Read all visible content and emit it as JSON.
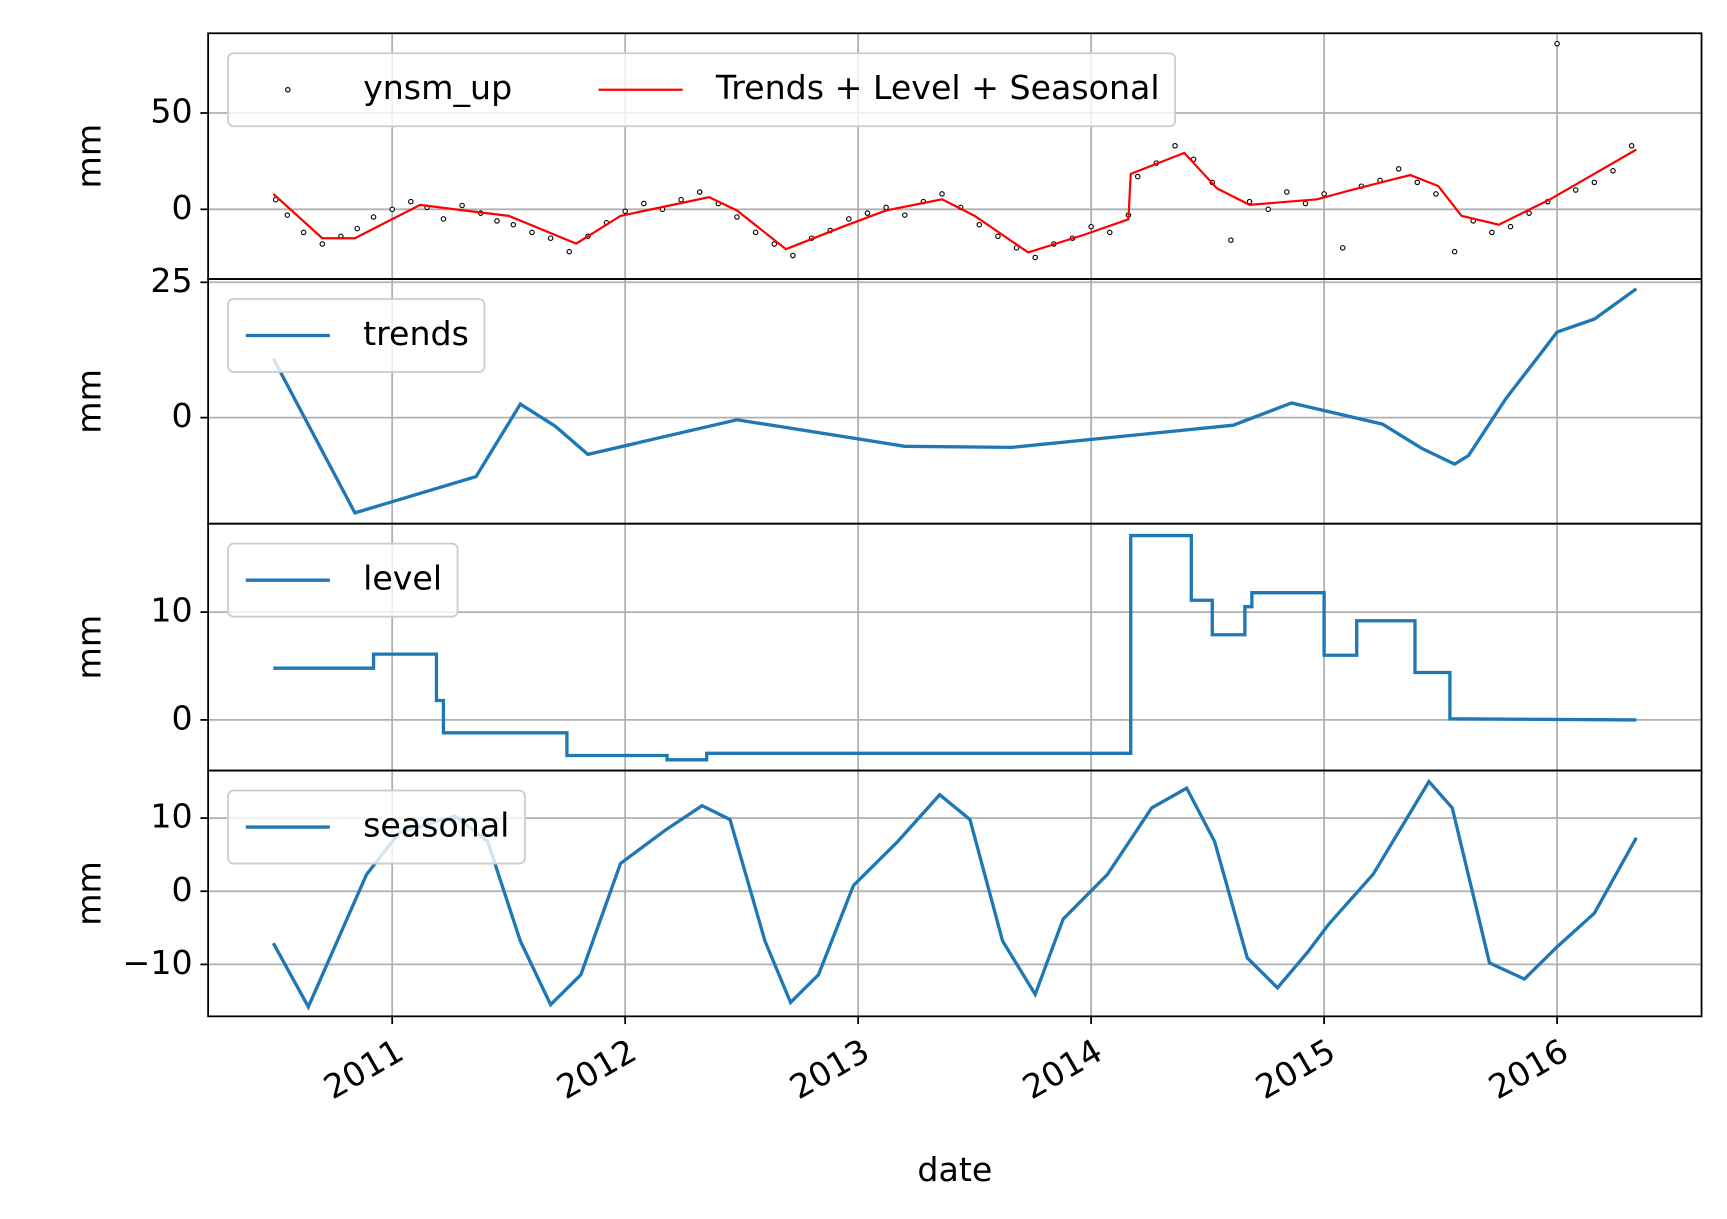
{
  "chart_data": [
    {
      "type": "line",
      "ylabel": "mm",
      "legend": "upper left",
      "grid": true,
      "xlim": [
        2010.21,
        2016.62
      ],
      "xticks": [
        2011,
        2012,
        2013,
        2014,
        2015,
        2016
      ],
      "ylim": [
        -36.2,
        91.4
      ],
      "yticks": [
        0,
        50
      ],
      "series": [
        {
          "name": "ynsm_up",
          "style": "points",
          "color": "#000000",
          "x": [
            2010.5,
            2010.55,
            2010.62,
            2010.7,
            2010.78,
            2010.85,
            2010.92,
            2011.0,
            2011.08,
            2011.15,
            2011.22,
            2011.3,
            2011.38,
            2011.45,
            2011.52,
            2011.6,
            2011.68,
            2011.76,
            2011.84,
            2011.92,
            2012.0,
            2012.08,
            2012.16,
            2012.24,
            2012.32,
            2012.4,
            2012.48,
            2012.56,
            2012.64,
            2012.72,
            2012.8,
            2012.88,
            2012.96,
            2013.04,
            2013.12,
            2013.2,
            2013.28,
            2013.36,
            2013.44,
            2013.52,
            2013.6,
            2013.68,
            2013.76,
            2013.84,
            2013.92,
            2014.0,
            2014.08,
            2014.16,
            2014.2,
            2014.28,
            2014.36,
            2014.44,
            2014.52,
            2014.6,
            2014.68,
            2014.76,
            2014.84,
            2014.92,
            2015.0,
            2015.08,
            2015.16,
            2015.24,
            2015.32,
            2015.4,
            2015.48,
            2015.56,
            2015.64,
            2015.72,
            2015.8,
            2015.88,
            2015.96,
            2016.0,
            2016.08,
            2016.16,
            2016.24,
            2016.32
          ],
          "values": [
            5,
            -3,
            -12,
            -18,
            -14,
            -10,
            -4,
            0,
            4,
            1,
            -5,
            2,
            -2,
            -6,
            -8,
            -12,
            -15,
            -22,
            -14,
            -7,
            -1,
            3,
            0,
            5,
            9,
            3,
            -4,
            -12,
            -18,
            -24,
            -15,
            -11,
            -5,
            -2,
            1,
            -3,
            4,
            8,
            1,
            -8,
            -14,
            -20,
            -25,
            -18,
            -15,
            -9,
            -12,
            -3,
            17,
            24,
            33,
            26,
            14,
            -16,
            4,
            0,
            9,
            3,
            8,
            -20,
            12,
            15,
            21,
            14,
            8,
            -22,
            -6,
            -12,
            -9,
            -2,
            4,
            86,
            10,
            14,
            20,
            33
          ]
        },
        {
          "name": "Trends + Level + Seasonal",
          "style": "line",
          "color": "#ff0000",
          "x": [
            2010.49,
            2010.7,
            2010.84,
            2011.12,
            2011.31,
            2011.5,
            2011.79,
            2011.98,
            2012.36,
            2012.48,
            2012.69,
            2012.93,
            2013.12,
            2013.36,
            2013.5,
            2013.73,
            2013.97,
            2014.16,
            2014.17,
            2014.4,
            2014.54,
            2014.68,
            2014.97,
            2015.11,
            2015.37,
            2015.49,
            2015.59,
            2015.75,
            2015.97,
            2016.34
          ],
          "values": [
            8,
            -15,
            -15,
            2.3,
            -0.6,
            -3.4,
            -17.8,
            -3.4,
            6.3,
            -0.6,
            -20.7,
            -9.2,
            -0.6,
            5.2,
            -3.4,
            -22.4,
            -13.2,
            -5.2,
            18.4,
            29.3,
            10.9,
            2.3,
            5.2,
            9.8,
            17.8,
            12.1,
            -3.4,
            -8.0,
            5.2,
            31
          ]
        }
      ]
    },
    {
      "type": "line",
      "ylabel": "mm",
      "legend": "upper left",
      "grid": true,
      "xlim": [
        2010.21,
        2016.62
      ],
      "xticks": [
        2011,
        2012,
        2013,
        2014,
        2015,
        2016
      ],
      "ylim": [
        -19.6,
        25.6
      ],
      "yticks": [
        0,
        25
      ],
      "series": [
        {
          "name": "trends",
          "style": "line",
          "color": "#1f77b4",
          "x": [
            2010.49,
            2010.84,
            2011.36,
            2011.55,
            2011.7,
            2011.84,
            2012.48,
            2013.2,
            2013.66,
            2014.61,
            2014.86,
            2015.25,
            2015.42,
            2015.56,
            2015.62,
            2015.78,
            2015.92,
            2016.0,
            2016.16,
            2016.34
          ],
          "values": [
            10.9,
            -17.6,
            -10.9,
            2.5,
            -1.6,
            -6.8,
            -0.4,
            -5.3,
            -5.5,
            -1.4,
            2.7,
            -1.2,
            -5.7,
            -8.6,
            -7.0,
            3.5,
            11.3,
            15.8,
            18.2,
            23.8
          ]
        }
      ]
    },
    {
      "type": "line",
      "ylabel": "mm",
      "legend": "upper left",
      "grid": true,
      "xlim": [
        2010.21,
        2016.62
      ],
      "xticks": [
        2011,
        2012,
        2013,
        2014,
        2015,
        2016
      ],
      "ylim": [
        -4.7,
        18.2
      ],
      "yticks": [
        0,
        10
      ],
      "series": [
        {
          "name": "level",
          "style": "line",
          "color": "#1f77b4",
          "x": [
            2010.49,
            2010.92,
            2010.92,
            2011.19,
            2011.19,
            2011.22,
            2011.22,
            2011.75,
            2011.75,
            2012.18,
            2012.18,
            2012.35,
            2012.35,
            2014.17,
            2014.17,
            2014.43,
            2014.43,
            2014.52,
            2014.52,
            2014.66,
            2014.66,
            2014.69,
            2014.69,
            2015.0,
            2015.0,
            2015.14,
            2015.14,
            2015.39,
            2015.39,
            2015.54,
            2015.54,
            2016.34
          ],
          "values": [
            4.8,
            4.8,
            6.1,
            6.1,
            1.8,
            1.8,
            -1.2,
            -1.2,
            -3.3,
            -3.3,
            -3.7,
            -3.7,
            -3.1,
            -3.1,
            17.1,
            17.1,
            11.1,
            11.1,
            7.9,
            7.9,
            10.5,
            10.5,
            11.8,
            11.8,
            6.0,
            6.0,
            9.2,
            9.2,
            4.4,
            4.4,
            0.1,
            0.0
          ]
        }
      ]
    },
    {
      "type": "line",
      "ylabel": "mm",
      "xlabel": "date",
      "legend": "upper left",
      "grid": true,
      "xlim": [
        2010.21,
        2016.62
      ],
      "xticks": [
        2011,
        2012,
        2013,
        2014,
        2015,
        2016
      ],
      "ylim": [
        -17.1,
        16.5
      ],
      "yticks": [
        {
          "value": -10,
          "label": "−10"
        },
        0,
        10
      ],
      "series": [
        {
          "name": "seasonal",
          "style": "line",
          "color": "#1f77b4",
          "x": [
            2010.49,
            2010.64,
            2010.89,
            2011.03,
            2011.27,
            2011.41,
            2011.55,
            2011.68,
            2011.81,
            2011.98,
            2012.17,
            2012.33,
            2012.45,
            2012.6,
            2012.71,
            2012.83,
            2012.98,
            2013.17,
            2013.35,
            2013.48,
            2013.62,
            2013.76,
            2013.88,
            2014.07,
            2014.26,
            2014.41,
            2014.53,
            2014.67,
            2014.8,
            2014.93,
            2015.02,
            2015.21,
            2015.45,
            2015.55,
            2015.71,
            2015.86,
            2016.0,
            2016.16,
            2016.34
          ],
          "values": [
            -7.1,
            -15.8,
            2.3,
            8.0,
            10.3,
            6.8,
            -6.8,
            -15.5,
            -11.4,
            3.8,
            8.3,
            11.7,
            9.8,
            -6.8,
            -15.2,
            -11.4,
            0.8,
            6.8,
            13.2,
            9.8,
            -6.8,
            -14.1,
            -3.8,
            2.3,
            11.4,
            14.1,
            6.8,
            -9.1,
            -13.2,
            -8.3,
            -4.5,
            2.3,
            15.0,
            11.4,
            -9.8,
            -12.0,
            -7.6,
            -3.0,
            7.3
          ]
        }
      ]
    }
  ]
}
